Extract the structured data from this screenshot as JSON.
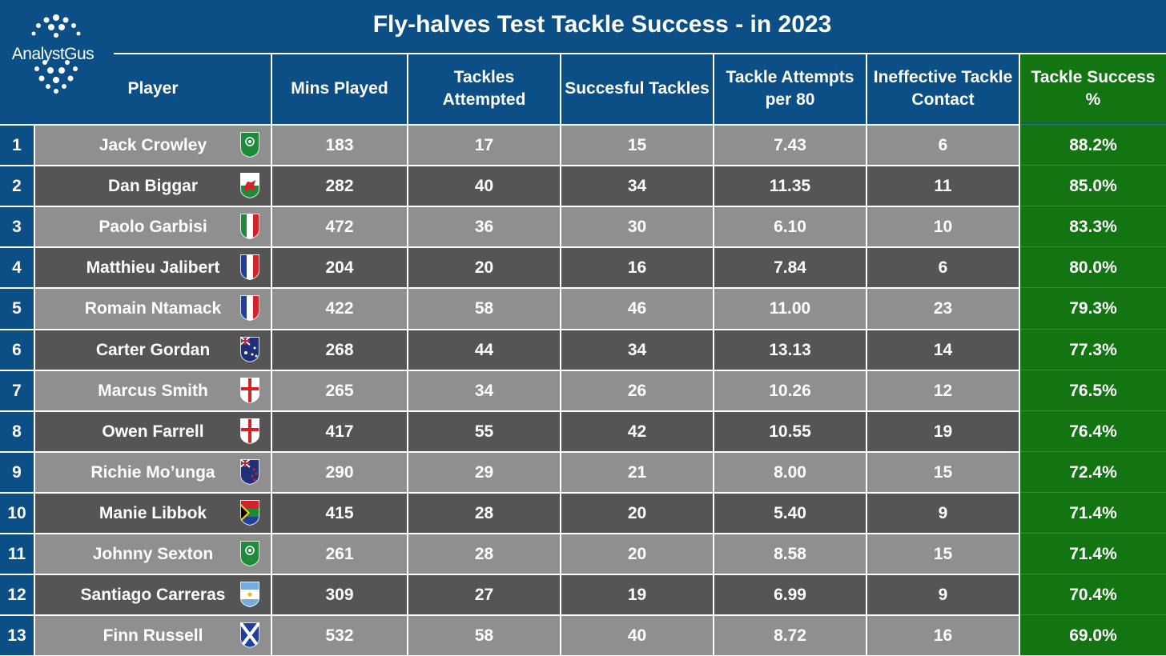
{
  "logo": {
    "text": "AnalystGus"
  },
  "title": "Fly-halves Test Tackle Success - in 2023",
  "columns": [
    "Player",
    "Mins Played",
    "Tackles Attempted",
    "Succesful Tackles",
    "Tackle Attempts per 80",
    "Ineffective Tackle Contact",
    "Tackle Success %"
  ],
  "colors": {
    "header_bg": "#0b4f86",
    "row_light": "#8f8f8f",
    "row_dark": "#555555",
    "success_bg": "#127512"
  },
  "chart_data": {
    "type": "table",
    "title": "Fly-halves Test Tackle Success - in 2023",
    "columns": [
      "Player",
      "Mins Played",
      "Tackles Attempted",
      "Succesful Tackles",
      "Tackle Attempts per 80",
      "Ineffective Tackle Contact",
      "Tackle Success %"
    ],
    "rows": [
      {
        "rank": "1",
        "player": "Jack Crowley",
        "flag": "ireland-flag-icon",
        "mins": "183",
        "attempted": "17",
        "successful": "15",
        "per80": "7.43",
        "ineffective": "6",
        "success_pct": "88.2%"
      },
      {
        "rank": "2",
        "player": "Dan Biggar",
        "flag": "wales-flag-icon",
        "mins": "282",
        "attempted": "40",
        "successful": "34",
        "per80": "11.35",
        "ineffective": "11",
        "success_pct": "85.0%"
      },
      {
        "rank": "3",
        "player": "Paolo Garbisi",
        "flag": "italy-flag-icon",
        "mins": "472",
        "attempted": "36",
        "successful": "30",
        "per80": "6.10",
        "ineffective": "10",
        "success_pct": "83.3%"
      },
      {
        "rank": "4",
        "player": "Matthieu Jalibert",
        "flag": "france-flag-icon",
        "mins": "204",
        "attempted": "20",
        "successful": "16",
        "per80": "7.84",
        "ineffective": "6",
        "success_pct": "80.0%"
      },
      {
        "rank": "5",
        "player": "Romain Ntamack",
        "flag": "france-flag-icon",
        "mins": "422",
        "attempted": "58",
        "successful": "46",
        "per80": "11.00",
        "ineffective": "23",
        "success_pct": "79.3%"
      },
      {
        "rank": "6",
        "player": "Carter Gordan",
        "flag": "australia-flag-icon",
        "mins": "268",
        "attempted": "44",
        "successful": "34",
        "per80": "13.13",
        "ineffective": "14",
        "success_pct": "77.3%"
      },
      {
        "rank": "7",
        "player": "Marcus Smith",
        "flag": "england-flag-icon",
        "mins": "265",
        "attempted": "34",
        "successful": "26",
        "per80": "10.26",
        "ineffective": "12",
        "success_pct": "76.5%"
      },
      {
        "rank": "8",
        "player": "Owen Farrell",
        "flag": "england-flag-icon",
        "mins": "417",
        "attempted": "55",
        "successful": "42",
        "per80": "10.55",
        "ineffective": "19",
        "success_pct": "76.4%"
      },
      {
        "rank": "9",
        "player": "Richie Mo’unga",
        "flag": "new-zealand-flag-icon",
        "mins": "290",
        "attempted": "29",
        "successful": "21",
        "per80": "8.00",
        "ineffective": "15",
        "success_pct": "72.4%"
      },
      {
        "rank": "10",
        "player": "Manie Libbok",
        "flag": "south-africa-flag-icon",
        "mins": "415",
        "attempted": "28",
        "successful": "20",
        "per80": "5.40",
        "ineffective": "9",
        "success_pct": "71.4%"
      },
      {
        "rank": "11",
        "player": "Johnny Sexton",
        "flag": "ireland-flag-icon",
        "mins": "261",
        "attempted": "28",
        "successful": "20",
        "per80": "8.58",
        "ineffective": "15",
        "success_pct": "71.4%"
      },
      {
        "rank": "12",
        "player": "Santiago Carreras",
        "flag": "argentina-flag-icon",
        "mins": "309",
        "attempted": "27",
        "successful": "19",
        "per80": "6.99",
        "ineffective": "9",
        "success_pct": "70.4%"
      },
      {
        "rank": "13",
        "player": "Finn Russell",
        "flag": "scotland-flag-icon",
        "mins": "532",
        "attempted": "58",
        "successful": "40",
        "per80": "8.72",
        "ineffective": "16",
        "success_pct": "69.0%"
      }
    ]
  }
}
